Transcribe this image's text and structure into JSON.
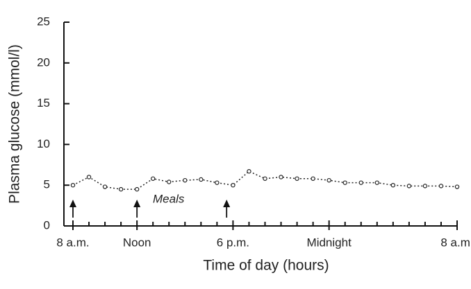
{
  "chart_data": {
    "type": "line",
    "x_label": "Time of day (hours)",
    "y_label": "Plasma glucose (mmol/l)",
    "x": [
      8,
      9,
      10,
      11,
      12,
      13,
      14,
      15,
      16,
      17,
      18,
      19,
      20,
      21,
      22,
      23,
      24,
      25,
      26,
      27,
      28,
      29,
      30,
      31,
      32
    ],
    "series": [
      {
        "color": "#222222",
        "values": [
          5.0,
          6.0,
          4.8,
          4.5,
          4.5,
          5.8,
          5.4,
          5.6,
          5.7,
          5.3,
          5.0,
          6.7,
          5.8,
          6.0,
          5.8,
          5.8,
          5.6,
          5.3,
          5.3,
          5.3,
          5.0,
          4.9,
          4.9,
          4.9,
          4.8
        ]
      }
    ],
    "xlim": [
      8,
      32
    ],
    "xticks": [
      {
        "value": 8,
        "label": "8 a.m."
      },
      {
        "value": 12,
        "label": "Noon"
      },
      {
        "value": 18,
        "label": "6 p.m."
      },
      {
        "value": 24,
        "label": "Midnight"
      },
      {
        "value": 32,
        "label": "8 a.m."
      }
    ],
    "minor_xticks": [
      9,
      10,
      11,
      13,
      14,
      15,
      16,
      17,
      19,
      20,
      21,
      22,
      23,
      25,
      26,
      27,
      28,
      29,
      30,
      31
    ],
    "ylim": [
      0,
      25
    ],
    "yticks": [
      0,
      5,
      10,
      15,
      20,
      25
    ],
    "grid": false,
    "annotations": {
      "label": "Meals",
      "times": [
        8,
        12,
        17.6
      ]
    }
  }
}
